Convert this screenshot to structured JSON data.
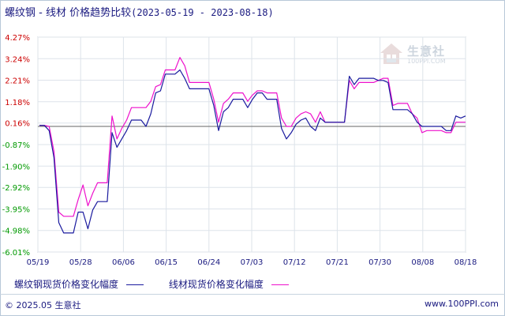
{
  "header": {
    "title": "螺纹钢 - 线材 价格趋势比较",
    "date_range": "(2023-05-19 - 2023-08-18)"
  },
  "watermark": {
    "brand": "生意社",
    "sub": "100PPI.COM"
  },
  "footer": {
    "copyright": "© 2025.05 生意社",
    "site": "www.100PPI.com"
  },
  "colors": {
    "series1": "#1a1a9e",
    "series2": "#ee11cc",
    "positive": "#cc0000",
    "negative": "#009900",
    "axis": "#1a1a80"
  },
  "chart_data": {
    "type": "line",
    "ylim": [
      -6.01,
      4.27
    ],
    "yticks": [
      "4.27%",
      "3.24%",
      "2.21%",
      "1.18%",
      "0.16%",
      "-0.87%",
      "-1.90%",
      "-2.92%",
      "-3.95%",
      "-4.98%",
      "-6.01%"
    ],
    "ytick_values": [
      4.27,
      3.24,
      2.21,
      1.18,
      0.16,
      -0.87,
      -1.9,
      -2.92,
      -3.95,
      -4.98,
      -6.01
    ],
    "xticks": [
      "05/19",
      "05/28",
      "06/06",
      "06/15",
      "06/24",
      "07/03",
      "07/12",
      "07/21",
      "07/30",
      "08/08",
      "08/18"
    ],
    "baseline": 0,
    "grid": true,
    "legend_position": "bottom",
    "series": [
      {
        "name": "螺纹钢现货价格变化幅度",
        "color": "#1a1a9e",
        "values": [
          0.05,
          0.05,
          -0.2,
          -1.5,
          -4.6,
          -5.1,
          -5.1,
          -5.1,
          -4.1,
          -4.1,
          -4.9,
          -4.0,
          -3.6,
          -3.6,
          -3.6,
          -0.3,
          -1.0,
          -0.6,
          -0.2,
          0.3,
          0.3,
          0.3,
          0.0,
          0.6,
          1.6,
          1.7,
          2.5,
          2.5,
          2.5,
          2.7,
          2.3,
          1.8,
          1.8,
          1.8,
          1.8,
          1.8,
          1.0,
          -0.2,
          0.7,
          0.9,
          1.3,
          1.3,
          1.3,
          0.9,
          1.3,
          1.6,
          1.6,
          1.3,
          1.3,
          1.3,
          -0.1,
          -0.6,
          -0.3,
          0.1,
          0.3,
          0.4,
          0.0,
          -0.2,
          0.4,
          0.2,
          0.2,
          0.2,
          0.2,
          0.2,
          2.4,
          2.0,
          2.3,
          2.3,
          2.3,
          2.3,
          2.2,
          2.2,
          2.1,
          0.8,
          0.8,
          0.8,
          0.8,
          0.6,
          0.2,
          0.0,
          0.0,
          0.0,
          0.0,
          0.0,
          -0.2,
          -0.2,
          0.5,
          0.4,
          0.5
        ]
      },
      {
        "name": "线材现货价格变化幅度",
        "color": "#ee11cc",
        "values": [
          0.05,
          0.05,
          0.0,
          -1.2,
          -4.1,
          -4.3,
          -4.3,
          -4.3,
          -3.5,
          -2.8,
          -3.8,
          -3.2,
          -2.7,
          -2.7,
          -2.7,
          0.5,
          -0.6,
          -0.1,
          0.3,
          0.9,
          0.9,
          0.9,
          0.9,
          1.2,
          1.9,
          2.0,
          2.7,
          2.7,
          2.7,
          3.3,
          2.9,
          2.1,
          2.1,
          2.1,
          2.1,
          2.1,
          1.3,
          0.2,
          1.1,
          1.3,
          1.6,
          1.6,
          1.6,
          1.2,
          1.5,
          1.7,
          1.7,
          1.6,
          1.6,
          1.6,
          0.4,
          0.0,
          0.0,
          0.4,
          0.6,
          0.7,
          0.6,
          0.2,
          0.7,
          0.2,
          0.2,
          0.2,
          0.2,
          0.2,
          2.2,
          1.8,
          2.1,
          2.1,
          2.1,
          2.1,
          2.2,
          2.3,
          2.3,
          1.0,
          1.1,
          1.1,
          1.1,
          0.6,
          0.4,
          -0.3,
          -0.2,
          -0.2,
          -0.2,
          -0.2,
          -0.3,
          -0.3,
          0.2,
          0.2,
          0.2
        ]
      }
    ]
  }
}
